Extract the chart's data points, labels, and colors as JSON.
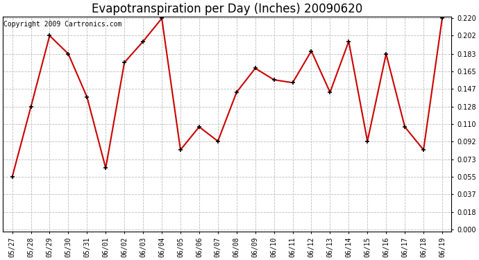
{
  "title": "Evapotranspiration per Day (Inches) 20090620",
  "copyright": "Copyright 2009 Cartronics.com",
  "x_labels": [
    "05/27",
    "05/28",
    "05/29",
    "05/30",
    "05/31",
    "06/01",
    "06/02",
    "06/03",
    "06/04",
    "06/05",
    "06/06",
    "06/07",
    "06/08",
    "06/09",
    "06/10",
    "06/11",
    "06/12",
    "06/13",
    "06/14",
    "06/15",
    "06/16",
    "06/17",
    "06/18",
    "06/19"
  ],
  "y_values": [
    0.055,
    0.128,
    0.202,
    0.183,
    0.138,
    0.064,
    0.174,
    0.196,
    0.22,
    0.083,
    0.107,
    0.092,
    0.143,
    0.168,
    0.156,
    0.153,
    0.186,
    0.143,
    0.196,
    0.092,
    0.183,
    0.107,
    0.083,
    0.22
  ],
  "y_ticks": [
    0.0,
    0.018,
    0.037,
    0.055,
    0.073,
    0.092,
    0.11,
    0.128,
    0.147,
    0.165,
    0.183,
    0.202,
    0.22
  ],
  "line_color": "#cc0000",
  "marker_color": "#000000",
  "marker_size": 5,
  "bg_color": "#ffffff",
  "grid_color": "#bbbbbb",
  "title_fontsize": 12,
  "tick_fontsize": 7,
  "ylim_min": -0.002,
  "ylim_max": 0.222,
  "copyright_fontsize": 7
}
